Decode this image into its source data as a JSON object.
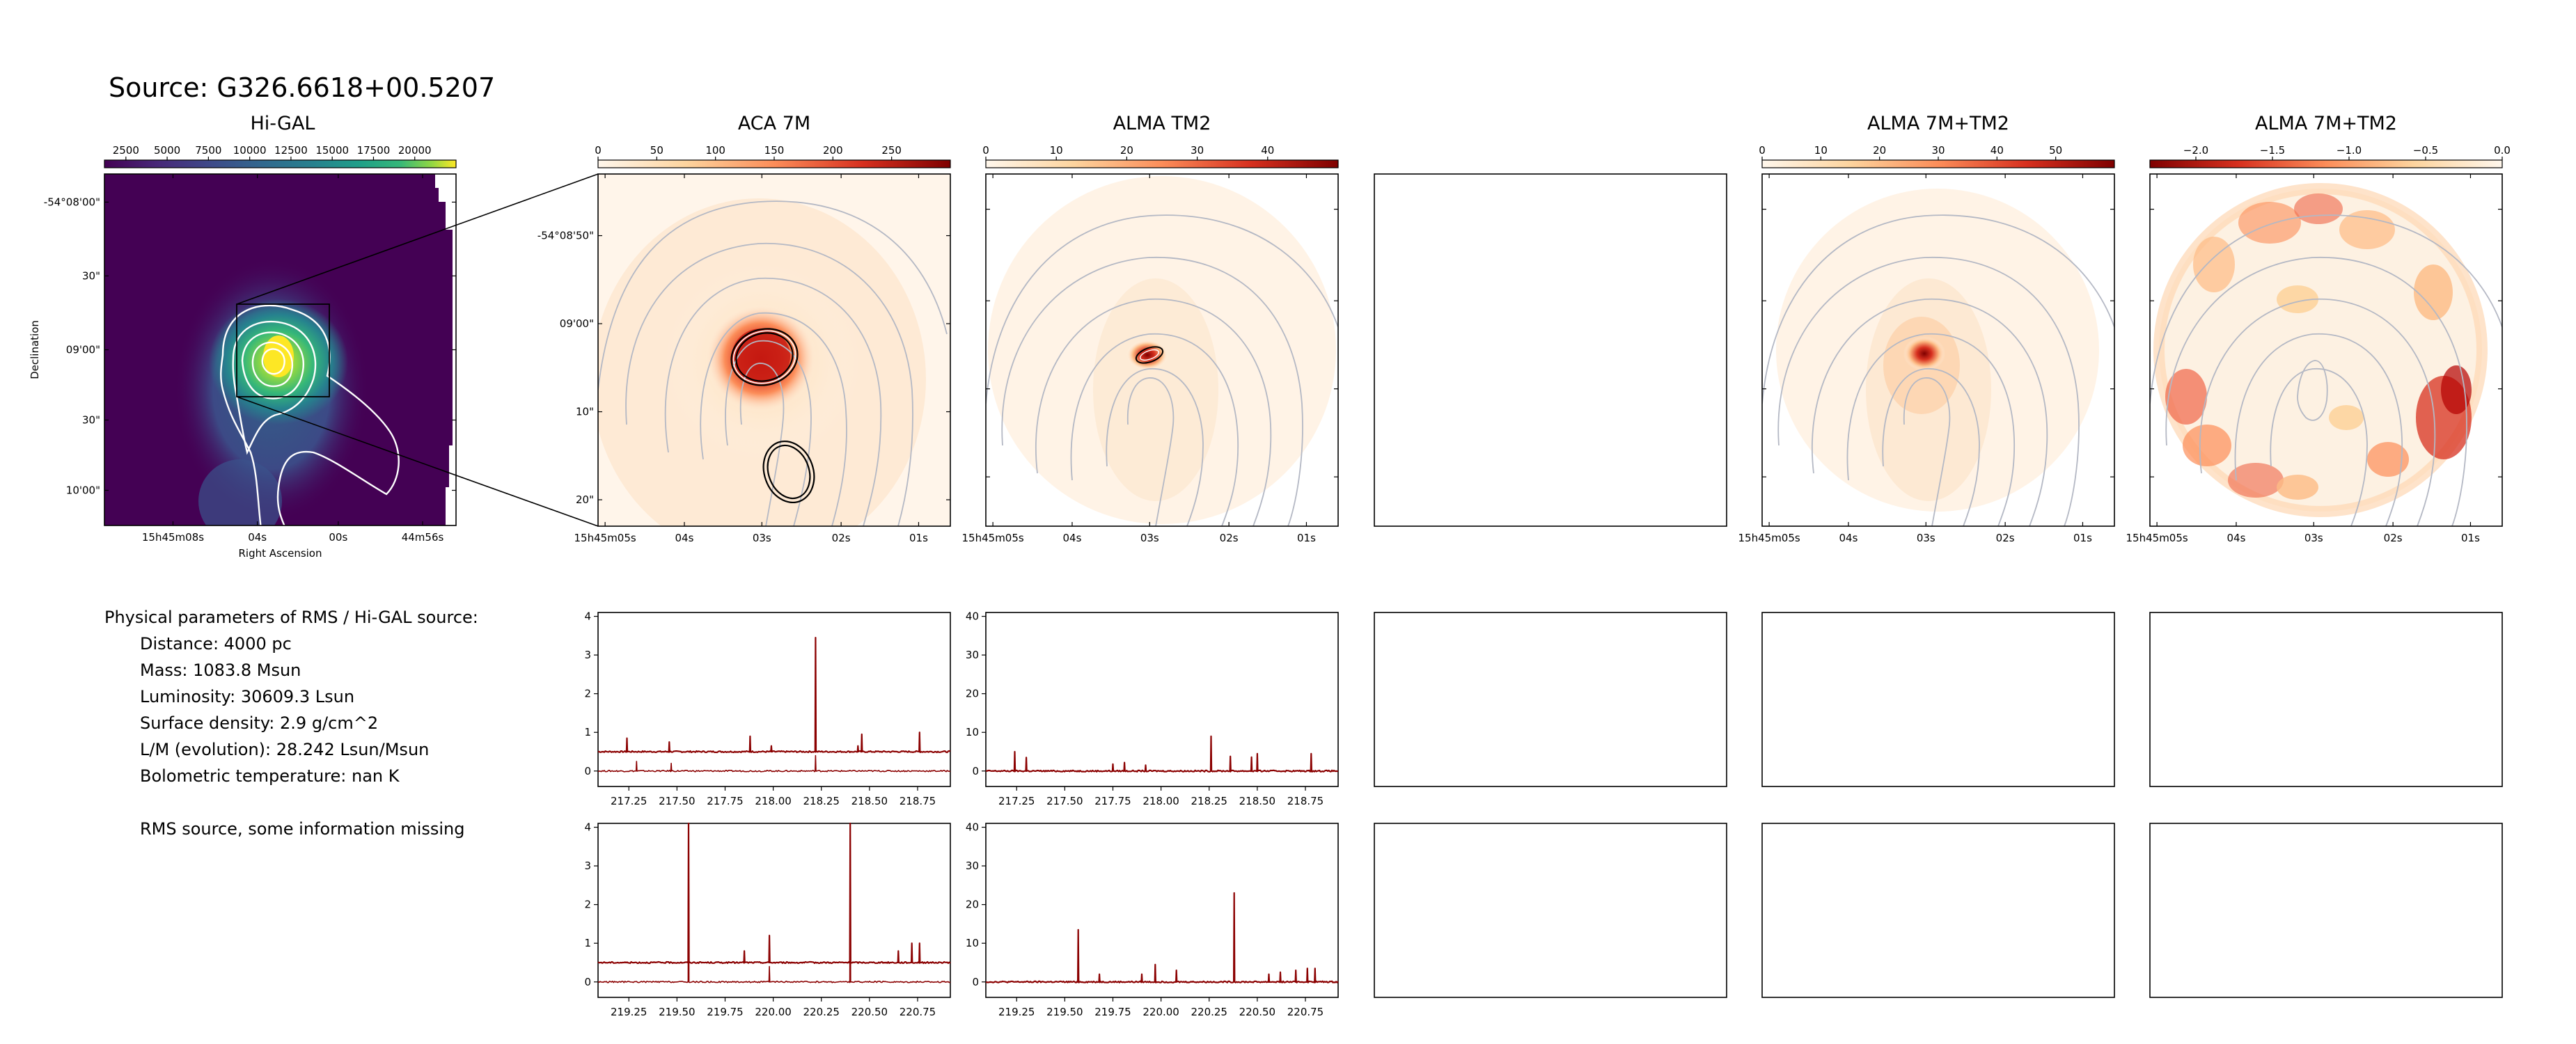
{
  "header": {
    "title": "Source: G326.6618+00.5207"
  },
  "panels": [
    {
      "id": "higal",
      "title": "Hi-GAL"
    },
    {
      "id": "aca7m",
      "title": "ACA 7M"
    },
    {
      "id": "tm2",
      "title": "ALMA TM2"
    },
    {
      "id": "empty",
      "title": ""
    },
    {
      "id": "combo",
      "title": "ALMA 7M+TM2"
    },
    {
      "id": "combo2",
      "title": "ALMA 7M+TM2"
    }
  ],
  "colorbars": {
    "higal": {
      "ticks": [
        "2500",
        "5000",
        "7500",
        "10000",
        "12500",
        "15000",
        "17500",
        "20000"
      ],
      "vmin": 1200,
      "vmax": 22500,
      "cmap": "viridis"
    },
    "aca7m": {
      "ticks": [
        "0",
        "50",
        "100",
        "150",
        "200",
        "250"
      ],
      "vmin": 0,
      "vmax": 300,
      "cmap": "OrRd"
    },
    "tm2": {
      "ticks": [
        "0",
        "10",
        "20",
        "30",
        "40"
      ],
      "vmin": 0,
      "vmax": 50,
      "cmap": "OrRd"
    },
    "combo": {
      "ticks": [
        "0",
        "10",
        "20",
        "30",
        "40",
        "50"
      ],
      "vmin": 0,
      "vmax": 60,
      "cmap": "OrRd"
    },
    "combo2": {
      "ticks": [
        "−2.0",
        "−1.5",
        "−1.0",
        "−0.5",
        "0.0"
      ],
      "vmin": -2.3,
      "vmax": 0.0,
      "cmap": "OrRd_r"
    }
  },
  "axes": {
    "higal": {
      "xticks": [
        "15h45m08s",
        "04s",
        "00s",
        "44m56s"
      ],
      "yticks": [
        "-54°08'00\"",
        "30\"",
        "09'00\"",
        "30\"",
        "10'00\""
      ],
      "xlabel": "Right Ascension",
      "ylabel": "Declination"
    },
    "aca7m": {
      "xticks": [
        "15h45m05s",
        "04s",
        "03s",
        "02s",
        "01s"
      ],
      "yticks": [
        "-54°08'50\"",
        "09'00\"",
        "10\"",
        "20\""
      ]
    },
    "tm2": {
      "xticks": [
        "15h45m05s",
        "04s",
        "03s",
        "02s",
        "01s"
      ]
    },
    "combo": {
      "xticks": [
        "15h45m05s",
        "04s",
        "03s",
        "02s",
        "01s"
      ]
    },
    "combo2": {
      "xticks": [
        "15h45m05s",
        "04s",
        "03s",
        "02s",
        "01s"
      ]
    }
  },
  "params": {
    "heading": "Physical parameters of RMS / Hi-GAL source:",
    "lines": [
      "Distance: 4000 pc",
      "Mass: 1083.8 Msun",
      "Luminosity: 30609.3 Lsun",
      "Surface density: 2.9 g/cm^2",
      "L/M (evolution): 28.242 Lsun/Msun",
      "Bolometric temperature: nan K"
    ],
    "note": "RMS source, some information missing"
  },
  "colors": {
    "spectrum_line": "#8b0000",
    "contour_white": "#ffffff",
    "contour_grey": "#b4b8c4",
    "frame": "#000000"
  },
  "chart_data": [
    {
      "type": "heatmap",
      "title": "Hi-GAL",
      "xlabel": "Right Ascension",
      "ylabel": "Declination",
      "colorbar_range": [
        1200,
        22500
      ],
      "peak_value": 21500,
      "contours": "white"
    },
    {
      "type": "heatmap",
      "title": "ACA 7M",
      "colorbar_range": [
        0,
        300
      ],
      "peak_value": 280
    },
    {
      "type": "heatmap",
      "title": "ALMA TM2",
      "colorbar_range": [
        0,
        50
      ],
      "peak_value": 48
    },
    {
      "type": "heatmap",
      "title": "ALMA 7M+TM2",
      "colorbar_range": [
        0,
        60
      ],
      "peak_value": 58
    },
    {
      "type": "heatmap",
      "title": "ALMA 7M+TM2",
      "colorbar_range": [
        -2.3,
        0.0
      ]
    },
    {
      "type": "line",
      "xlim": [
        217.09,
        218.92
      ],
      "ylim": [
        -0.4,
        4.1
      ],
      "xticks": [
        217.25,
        217.5,
        217.75,
        218.0,
        218.25,
        218.5,
        218.75
      ],
      "yticks": [
        0,
        1,
        2,
        3,
        4
      ],
      "series": [
        {
          "baseline": 0.5,
          "peaks": [
            [
              217.24,
              0.85
            ],
            [
              217.46,
              0.75
            ],
            [
              217.88,
              0.9
            ],
            [
              217.99,
              0.65
            ],
            [
              218.22,
              3.45
            ],
            [
              218.44,
              0.65
            ],
            [
              218.46,
              0.95
            ],
            [
              218.76,
              1.0
            ]
          ]
        },
        {
          "baseline": 0.0,
          "peaks": [
            [
              217.29,
              0.25
            ],
            [
              217.47,
              0.2
            ],
            [
              218.22,
              0.4
            ]
          ]
        }
      ]
    },
    {
      "type": "line",
      "xlim": [
        217.09,
        218.92
      ],
      "ylim": [
        -4,
        41
      ],
      "xticks": [
        217.25,
        217.5,
        217.75,
        218.0,
        218.25,
        218.5,
        218.75
      ],
      "yticks": [
        0,
        10,
        20,
        30,
        40
      ],
      "series": [
        {
          "baseline": 0.0,
          "peaks": [
            [
              217.24,
              5.0
            ],
            [
              217.3,
              3.5
            ],
            [
              217.75,
              1.8
            ],
            [
              217.81,
              2.2
            ],
            [
              217.92,
              1.5
            ],
            [
              218.26,
              9.0
            ],
            [
              218.36,
              3.8
            ],
            [
              218.47,
              3.6
            ],
            [
              218.5,
              4.5
            ],
            [
              218.78,
              4.5
            ]
          ]
        }
      ]
    },
    {
      "type": "line",
      "xlim": [
        219.09,
        220.92
      ],
      "ylim": [
        -0.4,
        4.1
      ],
      "xticks": [
        219.25,
        219.5,
        219.75,
        220.0,
        220.25,
        220.5,
        220.75
      ],
      "yticks": [
        0,
        1,
        2,
        3,
        4
      ],
      "series": [
        {
          "baseline": 0.5,
          "peaks": [
            [
              219.56,
              4.1
            ],
            [
              219.85,
              0.8
            ],
            [
              219.98,
              1.2
            ],
            [
              220.4,
              4.1
            ],
            [
              220.65,
              0.8
            ],
            [
              220.72,
              1.0
            ],
            [
              220.76,
              1.0
            ]
          ]
        },
        {
          "baseline": 0.0,
          "peaks": [
            [
              219.56,
              3.8
            ],
            [
              220.4,
              3.8
            ],
            [
              219.98,
              0.4
            ]
          ]
        }
      ]
    },
    {
      "type": "line",
      "xlim": [
        219.09,
        220.92
      ],
      "ylim": [
        -4,
        41
      ],
      "xticks": [
        219.25,
        219.5,
        219.75,
        220.0,
        220.25,
        220.5,
        220.75
      ],
      "yticks": [
        0,
        10,
        20,
        30,
        40
      ],
      "series": [
        {
          "baseline": 0.0,
          "peaks": [
            [
              219.57,
              13.5
            ],
            [
              219.68,
              2.0
            ],
            [
              219.9,
              2.0
            ],
            [
              219.97,
              4.5
            ],
            [
              220.08,
              3.0
            ],
            [
              220.38,
              23.0
            ],
            [
              220.56,
              2.0
            ],
            [
              220.62,
              2.5
            ],
            [
              220.7,
              3.0
            ],
            [
              220.76,
              3.5
            ],
            [
              220.8,
              3.5
            ]
          ]
        }
      ]
    }
  ]
}
